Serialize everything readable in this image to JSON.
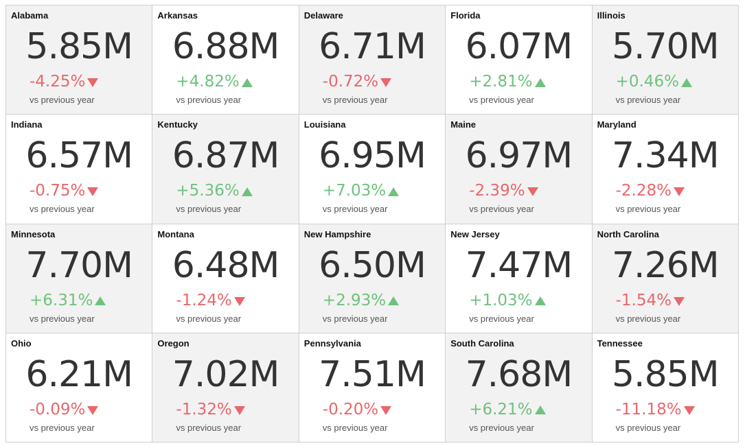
{
  "colors": {
    "negative": "#e8676b",
    "positive": "#6ec27d",
    "value_text": "#333333",
    "shaded_bg": "#f2f2f2"
  },
  "comparison_label": "vs previous year",
  "cards": [
    {
      "state": "Alabama",
      "value": "5.85M",
      "change": "-4.25%",
      "trend": "down",
      "shaded": true
    },
    {
      "state": "Arkansas",
      "value": "6.88M",
      "change": "+4.82%",
      "trend": "up",
      "shaded": false
    },
    {
      "state": "Delaware",
      "value": "6.71M",
      "change": "-0.72%",
      "trend": "down",
      "shaded": true
    },
    {
      "state": "Florida",
      "value": "6.07M",
      "change": "+2.81%",
      "trend": "up",
      "shaded": false
    },
    {
      "state": "Illinois",
      "value": "5.70M",
      "change": "+0.46%",
      "trend": "up",
      "shaded": true
    },
    {
      "state": "Indiana",
      "value": "6.57M",
      "change": "-0.75%",
      "trend": "down",
      "shaded": false
    },
    {
      "state": "Kentucky",
      "value": "6.87M",
      "change": "+5.36%",
      "trend": "up",
      "shaded": true
    },
    {
      "state": "Louisiana",
      "value": "6.95M",
      "change": "+7.03%",
      "trend": "up",
      "shaded": false
    },
    {
      "state": "Maine",
      "value": "6.97M",
      "change": "-2.39%",
      "trend": "down",
      "shaded": true
    },
    {
      "state": "Maryland",
      "value": "7.34M",
      "change": "-2.28%",
      "trend": "down",
      "shaded": false
    },
    {
      "state": "Minnesota",
      "value": "7.70M",
      "change": "+6.31%",
      "trend": "up",
      "shaded": true
    },
    {
      "state": "Montana",
      "value": "6.48M",
      "change": "-1.24%",
      "trend": "down",
      "shaded": false
    },
    {
      "state": "New Hampshire",
      "value": "6.50M",
      "change": "+2.93%",
      "trend": "up",
      "shaded": true
    },
    {
      "state": "New Jersey",
      "value": "7.47M",
      "change": "+1.03%",
      "trend": "up",
      "shaded": false
    },
    {
      "state": "North Carolina",
      "value": "7.26M",
      "change": "-1.54%",
      "trend": "down",
      "shaded": true
    },
    {
      "state": "Ohio",
      "value": "6.21M",
      "change": "-0.09%",
      "trend": "down",
      "shaded": false
    },
    {
      "state": "Oregon",
      "value": "7.02M",
      "change": "-1.32%",
      "trend": "down",
      "shaded": true
    },
    {
      "state": "Pennsylvania",
      "value": "7.51M",
      "change": "-0.20%",
      "trend": "down",
      "shaded": false
    },
    {
      "state": "South Carolina",
      "value": "7.68M",
      "change": "+6.21%",
      "trend": "up",
      "shaded": true
    },
    {
      "state": "Tennessee",
      "value": "5.85M",
      "change": "-11.18%",
      "trend": "down",
      "shaded": false
    }
  ]
}
